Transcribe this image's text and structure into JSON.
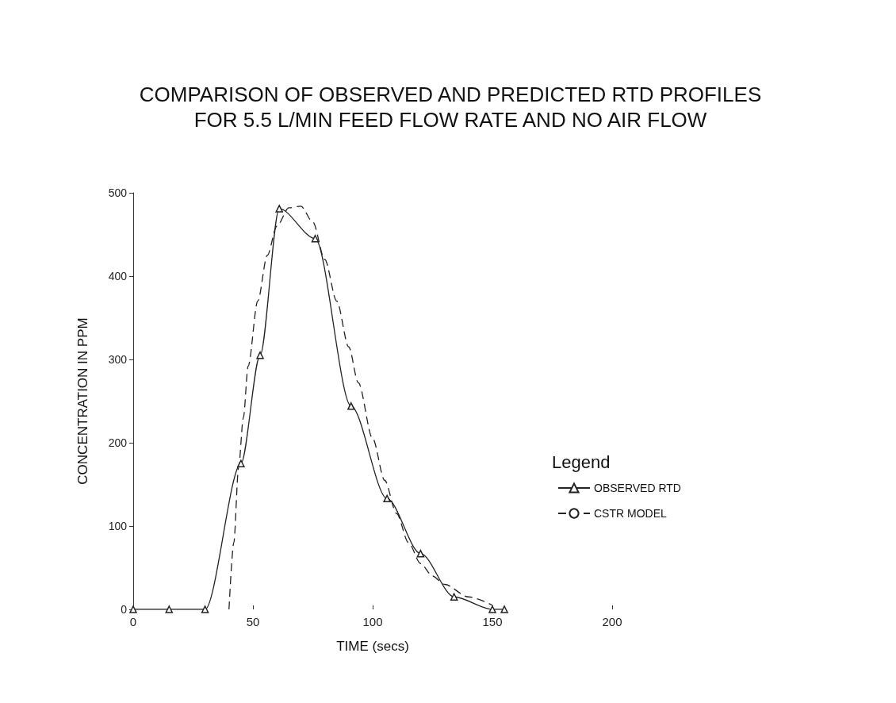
{
  "chart_data": {
    "type": "line",
    "title": "COMPARISON OF OBSERVED AND PREDICTED RTD PROFILES\nFOR 5.5 L/MIN FEED FLOW RATE AND NO AIR FLOW",
    "xlabel": "TIME (secs)",
    "ylabel": "CONCENTRATION IN PPM",
    "legend_title": "Legend",
    "xlim": [
      0,
      200
    ],
    "xticks": [
      0,
      50,
      100,
      150,
      200
    ],
    "ylim": [
      0,
      500
    ],
    "yticks": [
      0,
      100,
      200,
      300,
      400,
      500
    ],
    "grid": false,
    "legend": "right",
    "series": [
      {
        "name": "OBSERVED RTD",
        "color": "#222222",
        "marker": "triangle",
        "line_style": "solid",
        "x": [
          0,
          15,
          30,
          45,
          53,
          61,
          76,
          91,
          106,
          120,
          134,
          150,
          155
        ],
        "values": [
          0,
          0,
          0,
          175,
          305,
          481,
          445,
          244,
          133,
          67,
          15,
          0,
          0
        ]
      },
      {
        "name": "CSTR MODEL",
        "color": "#222222",
        "marker": "none",
        "line_style": "dashed",
        "x": [
          40,
          42,
          44,
          46,
          48,
          52,
          56,
          60,
          65,
          70,
          75,
          80,
          85,
          90,
          94,
          100,
          105,
          110,
          115,
          120,
          125,
          130,
          140,
          150
        ],
        "values": [
          0,
          80,
          170,
          230,
          292,
          370,
          425,
          460,
          482,
          484,
          465,
          420,
          370,
          315,
          272,
          205,
          155,
          115,
          80,
          55,
          40,
          30,
          15,
          5
        ]
      }
    ]
  }
}
